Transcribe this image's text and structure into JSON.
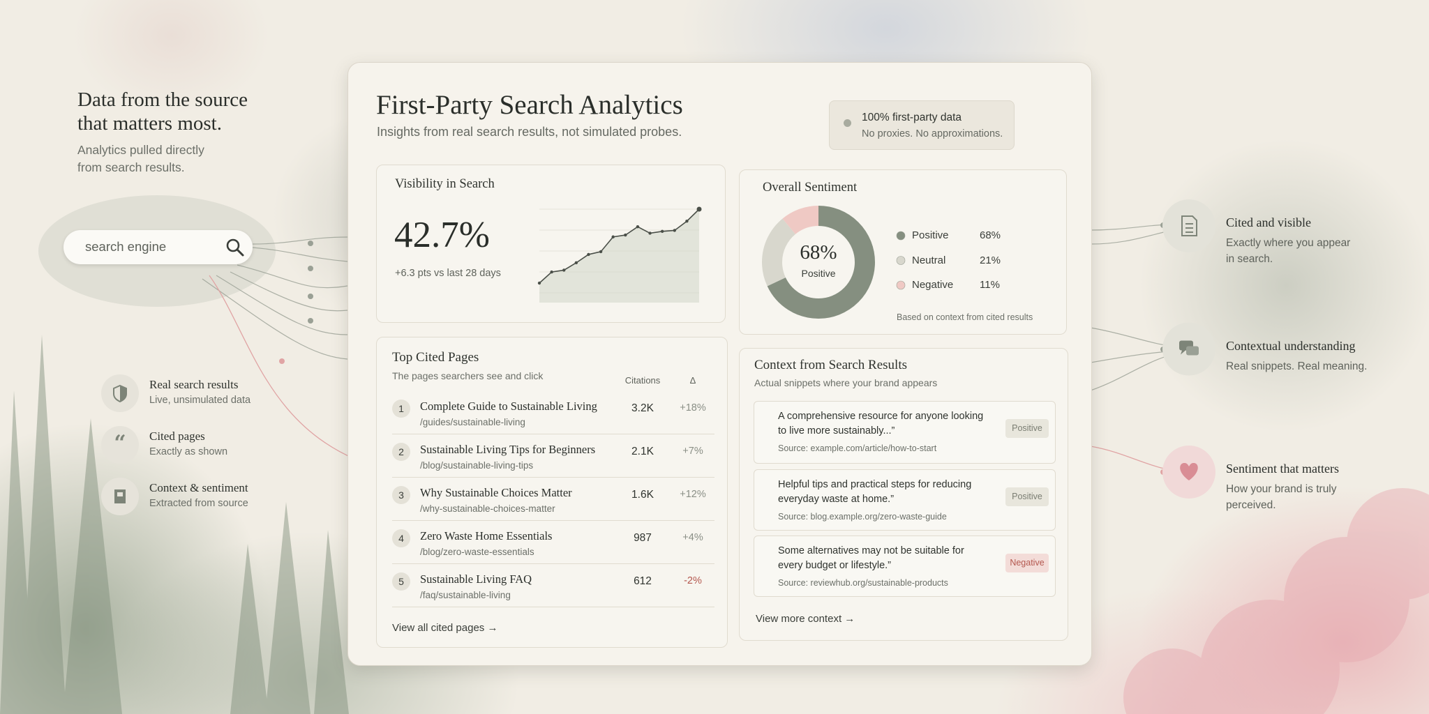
{
  "left_panel": {
    "title_lines": [
      "Data from the source",
      "that matters most."
    ],
    "subtitle_lines": [
      "Analytics pulled directly",
      "from search results."
    ],
    "search_placeholder": "search engine",
    "features": [
      {
        "title": "Real search results",
        "subtitle": "Live, unsimulated data"
      },
      {
        "title": "Cited pages",
        "subtitle": "Exactly as shown"
      },
      {
        "title": "Context & sentiment",
        "subtitle": "Extracted from source"
      }
    ]
  },
  "dashboard": {
    "title": "First-Party Search Analytics",
    "subtitle": "Insights from real search results, not simulated probes.",
    "badge": {
      "title": "100% first-party data",
      "subtitle": "No proxies. No approximations."
    },
    "visibility": {
      "title": "Visibility in Search",
      "value": "42.7%",
      "change": "+6.3 pts vs last 28 days",
      "sparkline": [
        20,
        32,
        34,
        42,
        51,
        54,
        70,
        72,
        81,
        74,
        76,
        77,
        87,
        100
      ]
    },
    "sentiment": {
      "title": "Overall Sentiment",
      "segments": [
        {
          "name": "Positive",
          "value": 68,
          "label": "68%",
          "color": "#858f80"
        },
        {
          "name": "Neutral",
          "value": 21,
          "label": "21%",
          "color": "#d8d7cd"
        },
        {
          "name": "Negative",
          "value": 11,
          "label": "11%",
          "color": "#efc9c4"
        }
      ],
      "note": "Based on context from cited results"
    },
    "top_pages": {
      "title": "Top Cited Pages",
      "subtitle": "The pages searchers see and click",
      "columns": [
        "Citations",
        "Δ"
      ],
      "rows": [
        {
          "rank": 1,
          "title": "Complete Guide to Sustainable Living",
          "path": "/guides/sustainable-living",
          "citations": "3.2K",
          "change": "+18%"
        },
        {
          "rank": 2,
          "title": "Sustainable Living Tips for Beginners",
          "path": "/blog/sustainable-living-tips",
          "citations": "2.1K",
          "change": "+7%"
        },
        {
          "rank": 3,
          "title": "Why Sustainable Choices Matter",
          "path": "/why-sustainable-choices-matter",
          "citations": "1.6K",
          "change": "+12%"
        },
        {
          "rank": 4,
          "title": "Zero Waste Home Essentials",
          "path": "/blog/zero-waste-essentials",
          "citations": "987",
          "change": "+4%"
        },
        {
          "rank": 5,
          "title": "Sustainable Living FAQ",
          "path": "/faq/sustainable-living",
          "citations": "612",
          "change": "-2%"
        }
      ],
      "link": "View all cited pages →"
    },
    "context": {
      "title": "Context from Search Results",
      "subtitle": "Actual snippets where your brand appears",
      "snippets": [
        {
          "text_lines": [
            "A comprehensive resource for anyone looking",
            "to live more sustainably...”"
          ],
          "source": "Source: example.com/article/how-to-start",
          "tag": "Positive"
        },
        {
          "text_lines": [
            "Helpful tips and practical steps for reducing",
            "everyday waste at home.”"
          ],
          "source": "Source: blog.example.org/zero-waste-guide",
          "tag": "Positive"
        },
        {
          "text_lines": [
            "Some alternatives may not be suitable for",
            "every budget or lifestyle.”"
          ],
          "source": "Source: reviewhub.org/sustainable-products",
          "tag": "Negative"
        }
      ],
      "link": "View more context →"
    }
  },
  "right_panel": {
    "features": [
      {
        "title": "Cited and visible",
        "subtitle_lines": [
          "Exactly where you appear",
          "in search."
        ]
      },
      {
        "title": "Contextual understanding",
        "subtitle_lines": [
          "Real snippets. Real meaning."
        ]
      },
      {
        "title": "Sentiment that matters",
        "subtitle_lines": [
          "How your brand is truly",
          "perceived."
        ]
      }
    ]
  }
}
